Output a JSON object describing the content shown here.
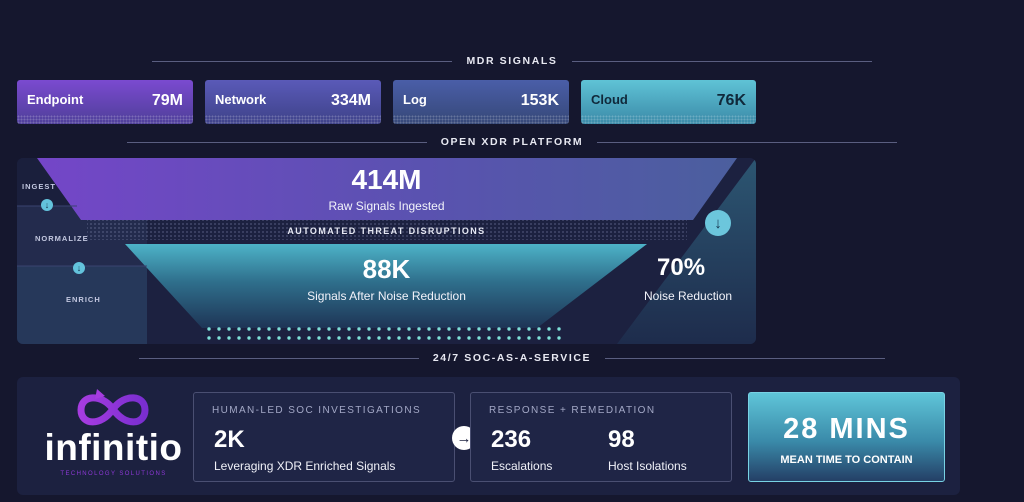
{
  "sections": {
    "mdr_signals": "MDR SIGNALS",
    "open_xdr": "OPEN XDR PLATFORM",
    "soc_service": "24/7 SOC-AS-A-SERVICE"
  },
  "signal_cards": [
    {
      "label": "Endpoint",
      "value": "79M"
    },
    {
      "label": "Network",
      "value": "334M"
    },
    {
      "label": "Log",
      "value": "153K"
    },
    {
      "label": "Cloud",
      "value": "76K"
    }
  ],
  "xdr": {
    "stages": [
      "INGEST",
      "NORMALIZE",
      "ENRICH"
    ],
    "raw_value": "414M",
    "raw_caption": "Raw Signals Ingested",
    "band_label": "AUTOMATED THREAT DISRUPTIONS",
    "reduced_value": "88K",
    "reduced_caption": "Signals After Noise Reduction",
    "noise_value": "70%",
    "noise_caption": "Noise Reduction"
  },
  "soc": {
    "logo_text": "infinitio",
    "logo_tagline": "TECHNOLOGY SOLUTIONS",
    "investigations": {
      "header": "HUMAN-LED SOC INVESTIGATIONS",
      "value": "2K",
      "caption": "Leveraging XDR Enriched Signals"
    },
    "response": {
      "header": "RESPONSE + REMEDIATION",
      "escalations_value": "236",
      "escalations_caption": "Escalations",
      "isolations_value": "98",
      "isolations_caption": "Host Isolations"
    },
    "mttc": {
      "value": "28 MINS",
      "caption": "MEAN TIME TO CONTAIN"
    }
  },
  "icons": {
    "stage_arrow": "arrow-down-icon",
    "flow_arrow": "arrow-right-icon",
    "logo": "infinity-logo-icon"
  },
  "colors": {
    "background": "#15172e",
    "panel": "#1c2140",
    "accent_teal": "#63c3dc",
    "accent_purple": "#7b4ad0"
  }
}
